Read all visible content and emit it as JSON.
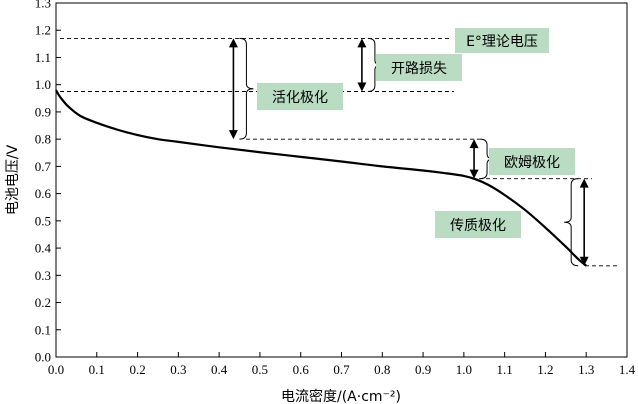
{
  "chart_data": {
    "type": "line",
    "xlabel": "电流密度/(A·cm⁻²)",
    "ylabel": "电池电压/V",
    "xlim": [
      0.0,
      1.4
    ],
    "ylim": [
      0.0,
      1.3
    ],
    "x_ticks": [
      "0.0",
      "0.1",
      "0.2",
      "0.3",
      "0.4",
      "0.5",
      "0.6",
      "0.7",
      "0.8",
      "0.9",
      "1.0",
      "1.1",
      "1.2",
      "1.3",
      "1.4"
    ],
    "y_ticks": [
      "0.0",
      "0.1",
      "0.2",
      "0.3",
      "0.4",
      "0.5",
      "0.6",
      "0.7",
      "0.8",
      "0.9",
      "1.0",
      "1.1",
      "1.2",
      "1.3"
    ],
    "grid": false,
    "series": [
      {
        "x": [
          0.0,
          0.01,
          0.03,
          0.06,
          0.1,
          0.15,
          0.2,
          0.25,
          0.3,
          0.4,
          0.5,
          0.6,
          0.7,
          0.8,
          0.9,
          0.95,
          1.0,
          1.03,
          1.06,
          1.1,
          1.15,
          1.2,
          1.25,
          1.28,
          1.3
        ],
        "y": [
          0.98,
          0.955,
          0.92,
          0.885,
          0.86,
          0.835,
          0.815,
          0.8,
          0.79,
          0.77,
          0.752,
          0.735,
          0.718,
          0.7,
          0.685,
          0.676,
          0.665,
          0.652,
          0.632,
          0.595,
          0.54,
          0.475,
          0.405,
          0.36,
          0.335
        ],
        "color": "#000000"
      }
    ],
    "reference_lines": [
      {
        "y": 1.17,
        "label": "E°理论电压"
      },
      {
        "y": 0.975
      },
      {
        "y": 0.8
      },
      {
        "y": 0.655
      },
      {
        "y": 0.335
      }
    ],
    "annotations": [
      {
        "label": "开路损失",
        "from": 1.17,
        "to": 0.975,
        "x": 0.75
      },
      {
        "label": "活化极化",
        "from": 1.17,
        "to": 0.8,
        "x": 0.435
      },
      {
        "label": "欧姆极化",
        "from": 0.8,
        "to": 0.655,
        "x": 1.025
      },
      {
        "label": "传质极化",
        "from": 0.655,
        "to": 0.335,
        "x": 1.295
      }
    ],
    "label_box_color": "#b9dcc2"
  }
}
